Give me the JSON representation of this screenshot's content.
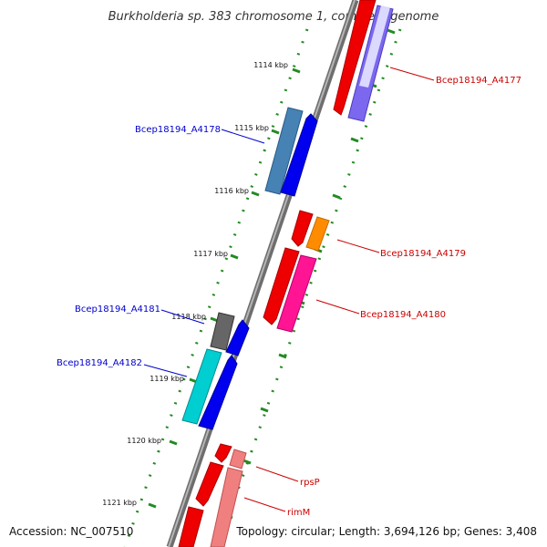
{
  "title": "Burkholderia sp. 383 chromosome 1, complete genome",
  "footer": {
    "accession": "Accession: NC_007510",
    "stats": "Topology: circular; Length: 3,694,126 bp; Genes: 3,408"
  },
  "colors": {
    "backbone": "#888888",
    "kbp_ticks": "#228B22",
    "label_forward": "#0000CC",
    "label_reverse": "#CC0000"
  },
  "kbp_labels": [
    "1114 kbp",
    "1115 kbp",
    "1116 kbp",
    "1117 kbp",
    "1118 kbp",
    "1119 kbp",
    "1120 kbp",
    "1121 kbp"
  ],
  "genes": [
    {
      "label": "Bcep18194_A4177",
      "strand": "reverse",
      "cds_color": "#7B68EE"
    },
    {
      "label": "Bcep18194_A4178",
      "strand": "forward",
      "cds_color": "#4682B4"
    },
    {
      "label": "Bcep18194_A4179",
      "strand": "reverse",
      "cds_color": "#FF8C00"
    },
    {
      "label": "Bcep18194_A4180",
      "strand": "reverse",
      "cds_color": "#FF1493"
    },
    {
      "label": "Bcep18194_A4181",
      "strand": "forward",
      "cds_color": "#666666"
    },
    {
      "label": "Bcep18194_A4182",
      "strand": "forward",
      "cds_color": "#00CED1"
    },
    {
      "label": "rpsP",
      "strand": "reverse",
      "cds_color": "#F08080"
    },
    {
      "label": "rimM",
      "strand": "reverse",
      "cds_color": "#F08080"
    }
  ]
}
